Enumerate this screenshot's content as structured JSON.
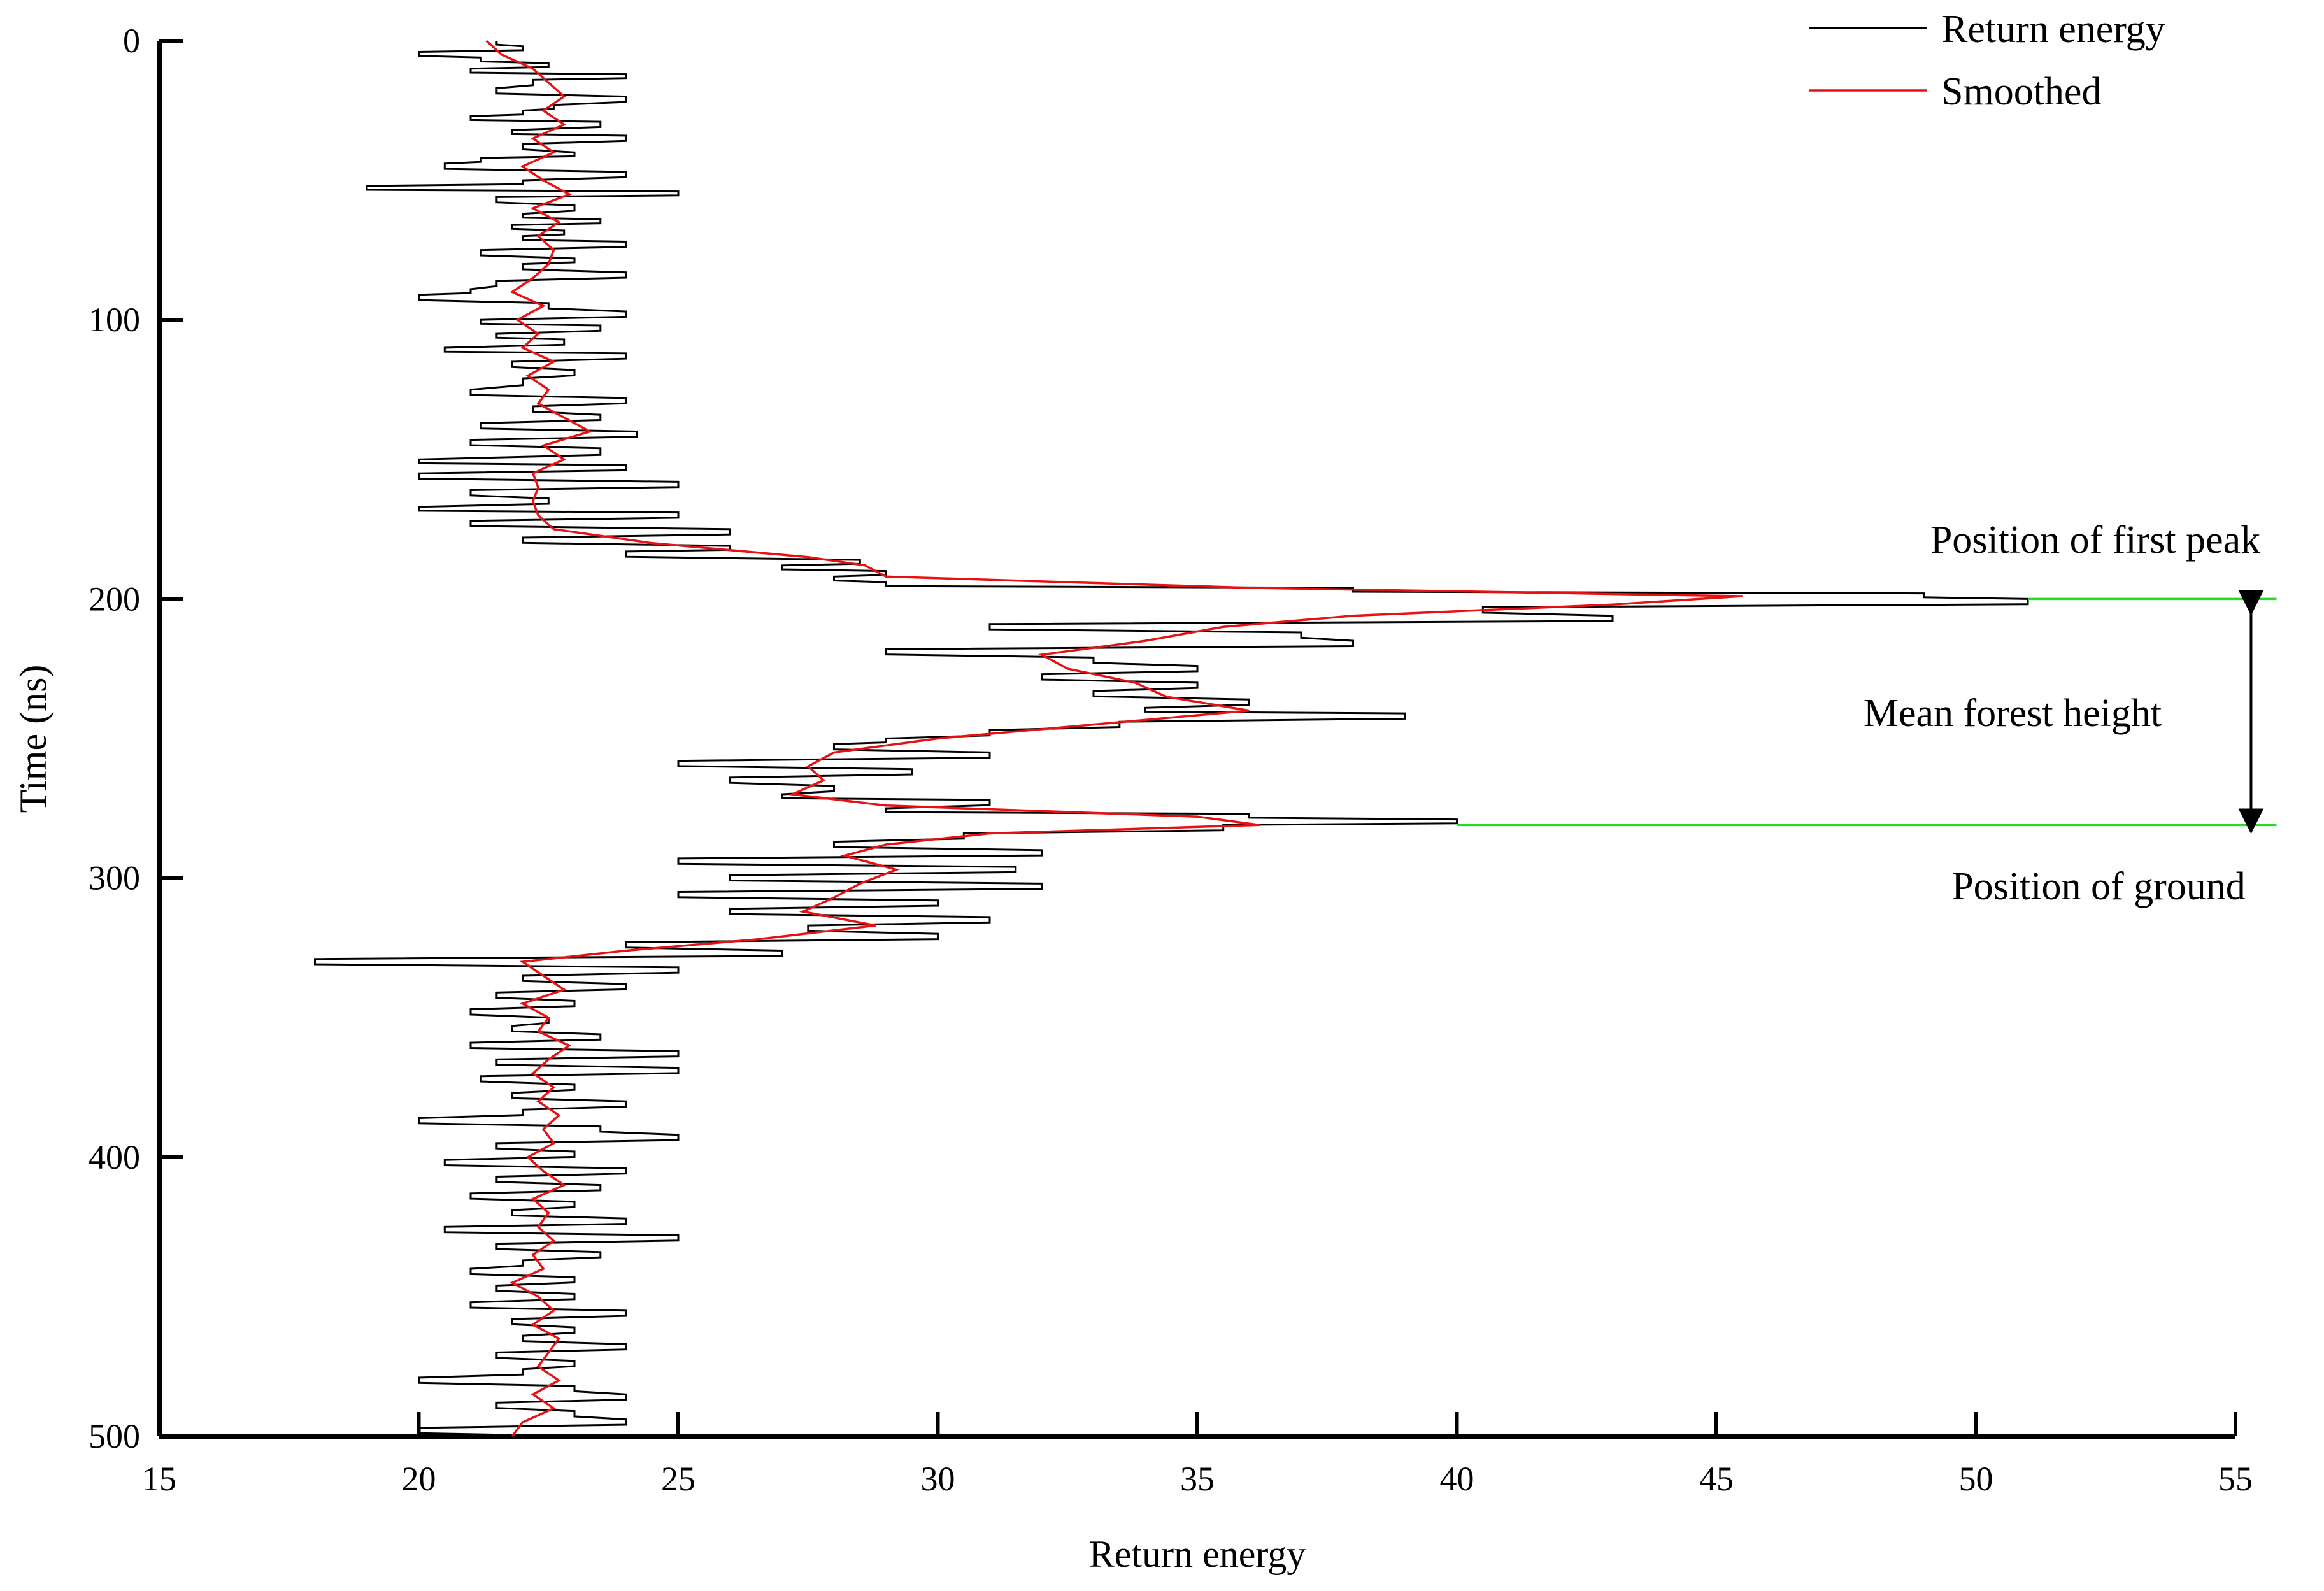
{
  "chart_data": {
    "type": "line",
    "title": "",
    "xlabel": "Return energy",
    "ylabel": "Time (ns)",
    "xlim": [
      15,
      55
    ],
    "ylim": [
      0,
      500
    ],
    "y_inverted": true,
    "x_ticks": [
      15,
      20,
      25,
      30,
      35,
      40,
      45,
      50,
      55
    ],
    "y_ticks": [
      0,
      100,
      200,
      300,
      400,
      500
    ],
    "grid": false,
    "legend_position": "top-right",
    "colors": {
      "return_energy": "#000000",
      "smoothed": "#e81010",
      "marker_lines": "#22dd22",
      "arrow": "#000000"
    },
    "series": [
      {
        "name": "Return energy",
        "points": [
          [
            0,
            21.5
          ],
          [
            2,
            22
          ],
          [
            4,
            20
          ],
          [
            6,
            21.2
          ],
          [
            8,
            22.5
          ],
          [
            10,
            21
          ],
          [
            12,
            24
          ],
          [
            14,
            22.2
          ],
          [
            17,
            21.5
          ],
          [
            20,
            24
          ],
          [
            23,
            22.6
          ],
          [
            25,
            22
          ],
          [
            27,
            21
          ],
          [
            29,
            23.5
          ],
          [
            32,
            21.8
          ],
          [
            34,
            24
          ],
          [
            37,
            22
          ],
          [
            40,
            23
          ],
          [
            42,
            21.2
          ],
          [
            44,
            20.5
          ],
          [
            47,
            24
          ],
          [
            50,
            22
          ],
          [
            52,
            19
          ],
          [
            54,
            25
          ],
          [
            56,
            21.5
          ],
          [
            59,
            23
          ],
          [
            62,
            22
          ],
          [
            64,
            23.5
          ],
          [
            66,
            21.8
          ],
          [
            68,
            22.8
          ],
          [
            70,
            22
          ],
          [
            72,
            24
          ],
          [
            75,
            21.2
          ],
          [
            78,
            23
          ],
          [
            80,
            22
          ],
          [
            83,
            24
          ],
          [
            86,
            21.5
          ],
          [
            89,
            21
          ],
          [
            91,
            20
          ],
          [
            94,
            22.5
          ],
          [
            97,
            24
          ],
          [
            100,
            21.2
          ],
          [
            102,
            23.5
          ],
          [
            105,
            21.5
          ],
          [
            107,
            22.8
          ],
          [
            110,
            20.5
          ],
          [
            112,
            24
          ],
          [
            115,
            21.8
          ],
          [
            118,
            23
          ],
          [
            121,
            22
          ],
          [
            125,
            21
          ],
          [
            128,
            24
          ],
          [
            131,
            22.2
          ],
          [
            134,
            23.5
          ],
          [
            137,
            21.2
          ],
          [
            140,
            24.2
          ],
          [
            143,
            21
          ],
          [
            146,
            23.5
          ],
          [
            150,
            20
          ],
          [
            152,
            24
          ],
          [
            155,
            20
          ],
          [
            158,
            25
          ],
          [
            161,
            21
          ],
          [
            164,
            22.5
          ],
          [
            167,
            20
          ],
          [
            169,
            25
          ],
          [
            172,
            21
          ],
          [
            175,
            26
          ],
          [
            178,
            22
          ],
          [
            181,
            26
          ],
          [
            183,
            24
          ],
          [
            186,
            28.5
          ],
          [
            188,
            27
          ],
          [
            190,
            29
          ],
          [
            192,
            28
          ],
          [
            194,
            29
          ],
          [
            196,
            38
          ],
          [
            198,
            49
          ],
          [
            200,
            51
          ],
          [
            203,
            40.5
          ],
          [
            206,
            43
          ],
          [
            209,
            31
          ],
          [
            212,
            37
          ],
          [
            215,
            38
          ],
          [
            218,
            29
          ],
          [
            221,
            33
          ],
          [
            224,
            35
          ],
          [
            227,
            32
          ],
          [
            230,
            35
          ],
          [
            233,
            33
          ],
          [
            236,
            36
          ],
          [
            239,
            34
          ],
          [
            241,
            39
          ],
          [
            244,
            33.5
          ],
          [
            247,
            31
          ],
          [
            250,
            29
          ],
          [
            252,
            28
          ],
          [
            255,
            31
          ],
          [
            258,
            25
          ],
          [
            261,
            29.5
          ],
          [
            264,
            26
          ],
          [
            267,
            28
          ],
          [
            270,
            27
          ],
          [
            272,
            31
          ],
          [
            275,
            29
          ],
          [
            277,
            36
          ],
          [
            279,
            40
          ],
          [
            281,
            35.5
          ],
          [
            284,
            30.5
          ],
          [
            287,
            28
          ],
          [
            290,
            32
          ],
          [
            293,
            25
          ],
          [
            296,
            31.5
          ],
          [
            299,
            26
          ],
          [
            302,
            32
          ],
          [
            305,
            25
          ],
          [
            308,
            30
          ],
          [
            311,
            26
          ],
          [
            314,
            31
          ],
          [
            317,
            27.5
          ],
          [
            320,
            30
          ],
          [
            323,
            24
          ],
          [
            326,
            27
          ],
          [
            329,
            18
          ],
          [
            332,
            25
          ],
          [
            335,
            22
          ],
          [
            338,
            24
          ],
          [
            341,
            21.5
          ],
          [
            344,
            23
          ],
          [
            347,
            21
          ],
          [
            350,
            22.5
          ],
          [
            353,
            21.8
          ],
          [
            356,
            23.5
          ],
          [
            359,
            21
          ],
          [
            362,
            25
          ],
          [
            365,
            21.5
          ],
          [
            368,
            25
          ],
          [
            371,
            21.2
          ],
          [
            374,
            23
          ],
          [
            377,
            21.8
          ],
          [
            380,
            24
          ],
          [
            383,
            22
          ],
          [
            386,
            20
          ],
          [
            389,
            23.5
          ],
          [
            392,
            25
          ],
          [
            395,
            21.5
          ],
          [
            398,
            23
          ],
          [
            401,
            20.5
          ],
          [
            404,
            24
          ],
          [
            407,
            21.5
          ],
          [
            410,
            23.5
          ],
          [
            413,
            21
          ],
          [
            416,
            23
          ],
          [
            419,
            21.8
          ],
          [
            422,
            24
          ],
          [
            425,
            20.5
          ],
          [
            428,
            25
          ],
          [
            431,
            21.5
          ],
          [
            434,
            23.5
          ],
          [
            437,
            22
          ],
          [
            440,
            21
          ],
          [
            443,
            23
          ],
          [
            446,
            21.5
          ],
          [
            449,
            23
          ],
          [
            452,
            21
          ],
          [
            455,
            24
          ],
          [
            458,
            21.8
          ],
          [
            461,
            23
          ],
          [
            464,
            22
          ],
          [
            467,
            24
          ],
          [
            470,
            21.5
          ],
          [
            473,
            23
          ],
          [
            476,
            22
          ],
          [
            479,
            20
          ],
          [
            482,
            23
          ],
          [
            485,
            24
          ],
          [
            488,
            21.5
          ],
          [
            491,
            23
          ],
          [
            494,
            24
          ],
          [
            497,
            20
          ],
          [
            500,
            23
          ]
        ]
      },
      {
        "name": "Smoothed",
        "points": [
          [
            0,
            21.3
          ],
          [
            5,
            21.6
          ],
          [
            10,
            22.2
          ],
          [
            15,
            22.5
          ],
          [
            20,
            22.8
          ],
          [
            25,
            22.4
          ],
          [
            30,
            22.8
          ],
          [
            35,
            22.2
          ],
          [
            40,
            22.6
          ],
          [
            45,
            22
          ],
          [
            50,
            22.4
          ],
          [
            55,
            22.9
          ],
          [
            60,
            22.2
          ],
          [
            65,
            22.7
          ],
          [
            70,
            22.3
          ],
          [
            75,
            22.6
          ],
          [
            80,
            22.5
          ],
          [
            85,
            22.2
          ],
          [
            90,
            21.8
          ],
          [
            95,
            22.4
          ],
          [
            100,
            21.9
          ],
          [
            105,
            22.3
          ],
          [
            110,
            22
          ],
          [
            115,
            22.6
          ],
          [
            120,
            22.1
          ],
          [
            125,
            22.5
          ],
          [
            130,
            22.3
          ],
          [
            135,
            22.8
          ],
          [
            140,
            23.3
          ],
          [
            145,
            22.4
          ],
          [
            150,
            22.8
          ],
          [
            155,
            22.2
          ],
          [
            160,
            22.3
          ],
          [
            165,
            22.2
          ],
          [
            170,
            22.3
          ],
          [
            175,
            22.6
          ],
          [
            180,
            24.5
          ],
          [
            185,
            27.5
          ],
          [
            188,
            28.6
          ],
          [
            192,
            29
          ],
          [
            196,
            36
          ],
          [
            199,
            45.5
          ],
          [
            202,
            43
          ],
          [
            206,
            38
          ],
          [
            210,
            35.5
          ],
          [
            215,
            34
          ],
          [
            220,
            32
          ],
          [
            225,
            32.5
          ],
          [
            230,
            33.8
          ],
          [
            235,
            34.4
          ],
          [
            240,
            36
          ],
          [
            245,
            33
          ],
          [
            250,
            30
          ],
          [
            255,
            28
          ],
          [
            260,
            27.5
          ],
          [
            265,
            27.8
          ],
          [
            270,
            27.2
          ],
          [
            274,
            29
          ],
          [
            278,
            35
          ],
          [
            281,
            36.2
          ],
          [
            284,
            31
          ],
          [
            288,
            29
          ],
          [
            292,
            28.2
          ],
          [
            297,
            29.2
          ],
          [
            302,
            28.5
          ],
          [
            307,
            28
          ],
          [
            312,
            27.4
          ],
          [
            317,
            28.8
          ],
          [
            322,
            26.5
          ],
          [
            326,
            24
          ],
          [
            330,
            22
          ],
          [
            335,
            22.4
          ],
          [
            340,
            22.8
          ],
          [
            345,
            22
          ],
          [
            350,
            22.5
          ],
          [
            355,
            22.3
          ],
          [
            360,
            22.9
          ],
          [
            365,
            22.5
          ],
          [
            370,
            22.2
          ],
          [
            375,
            22.6
          ],
          [
            380,
            22.3
          ],
          [
            385,
            22.7
          ],
          [
            390,
            22.4
          ],
          [
            395,
            22.6
          ],
          [
            400,
            22.1
          ],
          [
            405,
            22.4
          ],
          [
            410,
            22.8
          ],
          [
            415,
            22.2
          ],
          [
            420,
            22.5
          ],
          [
            425,
            22.3
          ],
          [
            430,
            22.6
          ],
          [
            435,
            22.2
          ],
          [
            440,
            22.4
          ],
          [
            445,
            21.8
          ],
          [
            450,
            22.3
          ],
          [
            455,
            22.6
          ],
          [
            460,
            22.2
          ],
          [
            465,
            22.7
          ],
          [
            470,
            22.5
          ],
          [
            475,
            22.3
          ],
          [
            480,
            22.7
          ],
          [
            485,
            22.2
          ],
          [
            490,
            22.6
          ],
          [
            495,
            22
          ],
          [
            500,
            21.8
          ]
        ]
      }
    ],
    "reference_lines": [
      {
        "name": "first-peak-line",
        "y": 200,
        "x_from": 51,
        "x_to": 55.3
      },
      {
        "name": "ground-line",
        "y": 281,
        "x_from": 40,
        "x_to": 55.3
      }
    ],
    "arrow": {
      "x": 55.3,
      "y_from": 200,
      "y_to": 281
    },
    "annotations": [
      {
        "name": "first-peak-label",
        "text": "Position of first peak"
      },
      {
        "name": "mean-height-label",
        "text": "Mean forest height"
      },
      {
        "name": "ground-label",
        "text": "Position of ground"
      }
    ]
  }
}
